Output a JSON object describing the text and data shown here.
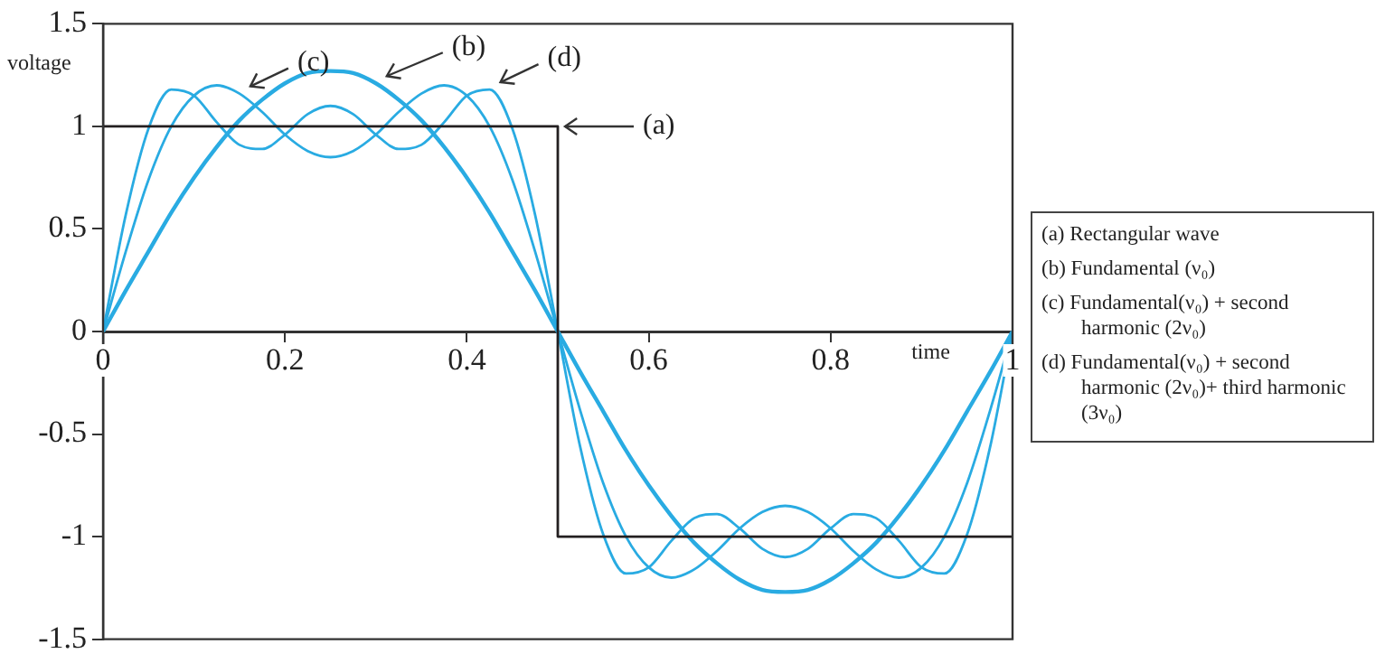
{
  "chart_data": {
    "type": "line",
    "xlabel": "time",
    "ylabel": "voltage",
    "xlim": [
      0,
      1
    ],
    "xticks": [
      0,
      0.2,
      0.4,
      0.6,
      0.8,
      1
    ],
    "ylim": [
      -1.5,
      1.5
    ],
    "yticks": [
      -1.5,
      -1,
      -0.5,
      0,
      0.5,
      1,
      1.5
    ],
    "grid": false,
    "legend": false,
    "marker": "none",
    "line_style": "solid",
    "series": [
      {
        "name": "(a)",
        "color": "#231f20",
        "x": [
          0,
          0.5,
          0.5,
          1
        ],
        "values": [
          1,
          1,
          -1,
          -1
        ]
      },
      {
        "name": "(b)",
        "color": "#29abe2",
        "x": [
          0,
          0.025,
          0.05,
          0.075,
          0.1,
          0.125,
          0.15,
          0.175,
          0.2,
          0.225,
          0.25,
          0.275,
          0.3,
          0.325,
          0.35,
          0.375,
          0.4,
          0.425,
          0.45,
          0.475,
          0.5,
          0.525,
          0.55,
          0.575,
          0.6,
          0.625,
          0.65,
          0.675,
          0.7,
          0.725,
          0.75,
          0.775,
          0.8,
          0.825,
          0.85,
          0.875,
          0.9,
          0.925,
          0.95,
          0.975,
          1
        ],
        "values": [
          0,
          0.2,
          0.39,
          0.58,
          0.75,
          0.9,
          1.03,
          1.13,
          1.21,
          1.26,
          1.27,
          1.26,
          1.21,
          1.13,
          1.03,
          0.9,
          0.75,
          0.58,
          0.39,
          0.2,
          0,
          -0.2,
          -0.39,
          -0.58,
          -0.75,
          -0.9,
          -1.03,
          -1.13,
          -1.21,
          -1.26,
          -1.27,
          -1.26,
          -1.21,
          -1.13,
          -1.03,
          -0.9,
          -0.75,
          -0.58,
          -0.39,
          -0.2,
          0
        ]
      },
      {
        "name": "(c)",
        "color": "#29abe2",
        "x": [
          0,
          0.025,
          0.05,
          0.075,
          0.1,
          0.125,
          0.15,
          0.175,
          0.2,
          0.225,
          0.25,
          0.275,
          0.3,
          0.325,
          0.35,
          0.375,
          0.4,
          0.425,
          0.45,
          0.475,
          0.5,
          0.525,
          0.55,
          0.575,
          0.6,
          0.625,
          0.65,
          0.675,
          0.7,
          0.725,
          0.75,
          0.775,
          0.8,
          0.825,
          0.85,
          0.875,
          0.9,
          0.925,
          0.95,
          0.975,
          1
        ],
        "values": [
          0,
          0.39,
          0.74,
          1,
          1.15,
          1.2,
          1.16,
          1.07,
          0.96,
          0.88,
          0.85,
          0.88,
          0.96,
          1.07,
          1.16,
          1.2,
          1.15,
          1,
          0.74,
          0.39,
          0,
          -0.39,
          -0.74,
          -1,
          -1.15,
          -1.2,
          -1.16,
          -1.07,
          -0.96,
          -0.88,
          -0.85,
          -0.88,
          -0.96,
          -1.07,
          -1.16,
          -1.2,
          -1.15,
          -1,
          -0.74,
          -0.39,
          0
        ]
      },
      {
        "name": "(d)",
        "color": "#29abe2",
        "x": [
          0,
          0.025,
          0.05,
          0.075,
          0.1,
          0.125,
          0.15,
          0.175,
          0.2,
          0.225,
          0.25,
          0.275,
          0.3,
          0.325,
          0.35,
          0.375,
          0.4,
          0.425,
          0.45,
          0.475,
          0.5,
          0.525,
          0.55,
          0.575,
          0.6,
          0.625,
          0.65,
          0.675,
          0.7,
          0.725,
          0.75,
          0.775,
          0.8,
          0.825,
          0.85,
          0.875,
          0.9,
          0.925,
          0.95,
          0.975,
          1
        ],
        "values": [
          0,
          0.57,
          0.99,
          1.18,
          1.15,
          1.02,
          0.91,
          0.89,
          0.96,
          1.06,
          1.1,
          1.06,
          0.96,
          0.89,
          0.91,
          1.02,
          1.15,
          1.18,
          0.99,
          0.57,
          0,
          -0.57,
          -0.99,
          -1.18,
          -1.15,
          -1.02,
          -0.91,
          -0.89,
          -0.96,
          -1.06,
          -1.1,
          -1.06,
          -0.96,
          -0.89,
          -0.91,
          -1.02,
          -1.15,
          -1.18,
          -0.99,
          -0.57,
          0
        ]
      }
    ],
    "annotations": [
      "(a)  Rectangular wave",
      "(b) Fundamental (ν₀)",
      "(c) Fundamental(ν₀) + second harmonic (2ν₀)",
      "(d) Fundamental(ν₀) + second harmonic (2ν₀)+ third harmonic (3ν₀)"
    ]
  }
}
